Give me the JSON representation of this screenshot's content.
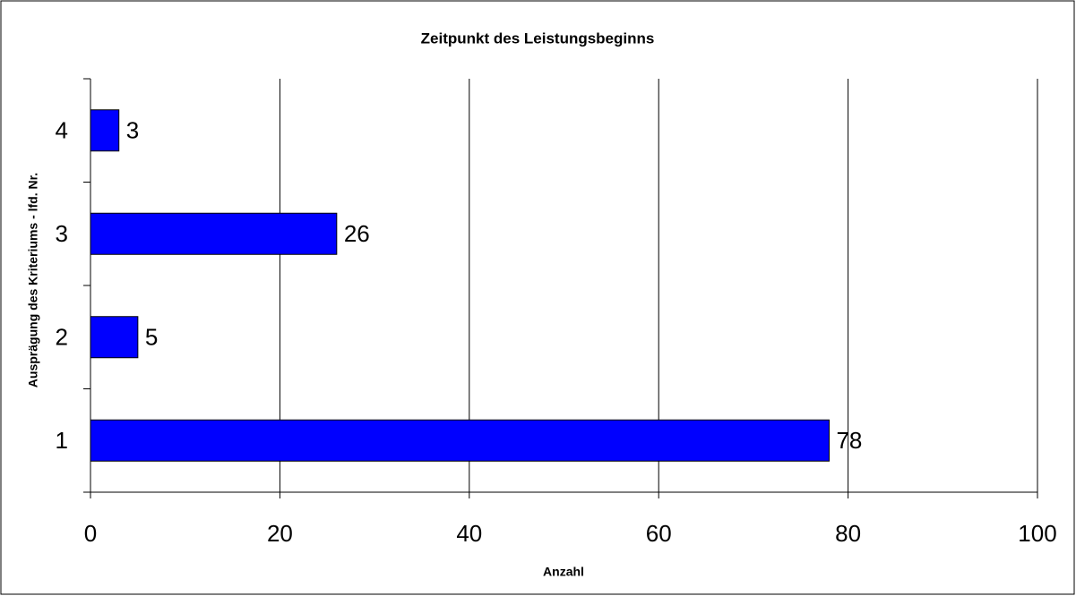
{
  "chart_data": {
    "type": "bar",
    "orientation": "horizontal",
    "title": "Zeitpunkt des Leistungsbeginns",
    "xlabel": "Anzahl",
    "ylabel": "Ausprägung des Kriteriums - lfd. Nr.",
    "categories": [
      "1",
      "2",
      "3",
      "4"
    ],
    "values": [
      78,
      5,
      26,
      3
    ],
    "color": "#0000ff",
    "xlim": [
      0,
      100
    ],
    "xticks": [
      0,
      20,
      40,
      60,
      80,
      100
    ],
    "grid": true
  }
}
